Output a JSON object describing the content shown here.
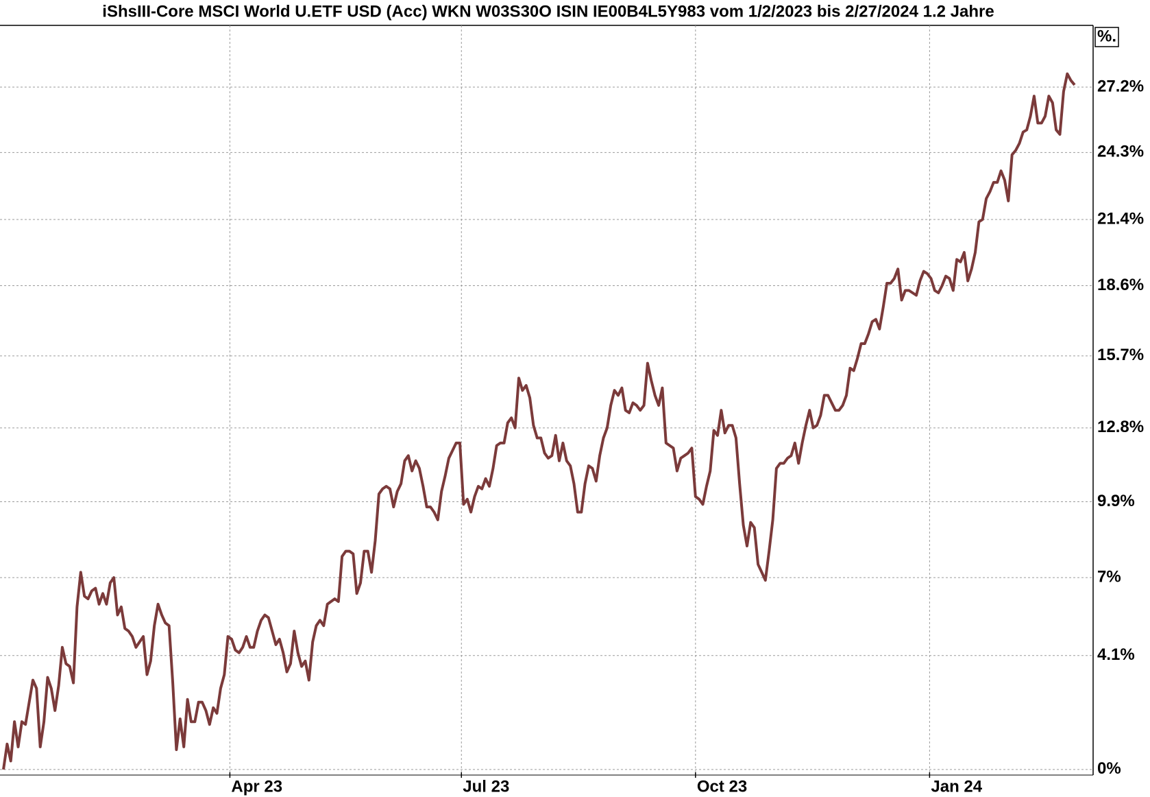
{
  "chart_data": {
    "type": "line",
    "title": "iShsIII-Core MSCI World U.ETF USD (Acc) WKN W03S30O ISIN IE00B4L5Y983 vom 1/2/2023 bis 2/27/2024 1.2 Jahre",
    "unit_label": "%.",
    "xlim": [
      "2023-01-02",
      "2024-02-27"
    ],
    "xticks": [
      {
        "value": "2023-04",
        "label": "Apr 23"
      },
      {
        "value": "2023-07",
        "label": "Jul 23"
      },
      {
        "value": "2023-10",
        "label": "Oct 23"
      },
      {
        "value": "2024-01",
        "label": "Jan 24"
      }
    ],
    "ylim": [
      -0.1,
      30
    ],
    "yticks": [
      {
        "value": 0,
        "label": "0%"
      },
      {
        "value": 4.1,
        "label": "4.1%"
      },
      {
        "value": 7,
        "label": "7%"
      },
      {
        "value": 9.9,
        "label": "9.9%"
      },
      {
        "value": 12.8,
        "label": "12.8%"
      },
      {
        "value": 15.7,
        "label": "15.7%"
      },
      {
        "value": 18.6,
        "label": "18.6%"
      },
      {
        "value": 21.4,
        "label": "21.4%"
      },
      {
        "value": 24.3,
        "label": "24.3%"
      },
      {
        "value": 27.2,
        "label": "27.2%"
      }
    ],
    "log_scale": true,
    "grid": true,
    "color": "#7b3a3a",
    "values": [
      0.0,
      0.9,
      0.3,
      1.7,
      0.8,
      1.7,
      1.6,
      2.4,
      3.2,
      2.9,
      0.8,
      1.7,
      3.3,
      2.9,
      2.1,
      3.0,
      4.4,
      3.8,
      3.7,
      3.1,
      5.9,
      7.2,
      6.3,
      6.2,
      6.5,
      6.6,
      6.0,
      6.4,
      6.0,
      6.8,
      7.0,
      5.6,
      5.9,
      5.1,
      5.0,
      4.8,
      4.4,
      4.6,
      4.8,
      3.4,
      3.9,
      5.2,
      6.0,
      5.6,
      5.3,
      5.2,
      3.1,
      0.7,
      1.8,
      0.8,
      2.5,
      1.7,
      1.7,
      2.4,
      2.4,
      2.1,
      1.6,
      2.2,
      2.0,
      2.9,
      3.4,
      4.8,
      4.7,
      4.3,
      4.2,
      4.4,
      4.8,
      4.4,
      4.4,
      5.0,
      5.4,
      5.6,
      5.5,
      5.0,
      4.5,
      4.7,
      4.2,
      3.5,
      3.8,
      5.0,
      4.2,
      3.7,
      3.9,
      3.2,
      4.6,
      5.2,
      5.4,
      5.2,
      6.0,
      6.1,
      6.2,
      6.1,
      7.8,
      8.0,
      8.0,
      7.9,
      6.4,
      6.8,
      8.0,
      8.0,
      7.2,
      8.4,
      10.2,
      10.4,
      10.5,
      10.4,
      9.7,
      10.3,
      10.6,
      11.5,
      11.7,
      11.1,
      11.5,
      11.2,
      10.5,
      9.7,
      9.7,
      9.5,
      9.2,
      10.3,
      10.9,
      11.6,
      11.9,
      12.2,
      12.2,
      9.8,
      10.0,
      9.5,
      10.1,
      10.5,
      10.4,
      10.8,
      10.5,
      11.2,
      12.1,
      12.2,
      12.2,
      13.0,
      13.2,
      12.8,
      14.8,
      14.3,
      14.5,
      14.0,
      12.9,
      12.4,
      12.4,
      11.8,
      11.6,
      11.7,
      12.5,
      11.5,
      12.2,
      11.5,
      11.3,
      10.6,
      9.5,
      9.5,
      10.6,
      11.3,
      11.2,
      10.7,
      11.7,
      12.4,
      12.8,
      13.7,
      14.3,
      14.1,
      14.4,
      13.5,
      13.4,
      13.8,
      13.7,
      13.5,
      13.7,
      15.4,
      14.7,
      14.1,
      13.7,
      14.4,
      12.2,
      12.1,
      12.0,
      11.1,
      11.6,
      11.7,
      11.8,
      12.0,
      10.1,
      10.0,
      9.8,
      10.5,
      11.1,
      12.7,
      12.5,
      13.5,
      12.6,
      12.9,
      12.9,
      12.4,
      10.6,
      9.0,
      8.2,
      9.1,
      8.9,
      7.5,
      7.2,
      6.9,
      8.0,
      9.2,
      11.2,
      11.4,
      11.4,
      11.6,
      11.7,
      12.2,
      11.4,
      12.2,
      12.9,
      13.5,
      12.8,
      12.9,
      13.3,
      14.1,
      14.1,
      13.8,
      13.5,
      13.5,
      13.7,
      14.1,
      15.2,
      15.1,
      15.6,
      16.2,
      16.2,
      16.6,
      17.1,
      17.2,
      16.8,
      17.7,
      18.7,
      18.7,
      18.9,
      19.3,
      18.0,
      18.4,
      18.4,
      18.3,
      18.2,
      18.8,
      19.2,
      19.1,
      18.9,
      18.4,
      18.3,
      18.6,
      19.0,
      18.9,
      18.4,
      19.7,
      19.6,
      20.0,
      18.8,
      19.3,
      20.0,
      21.3,
      21.4,
      22.3,
      22.6,
      23.0,
      23.0,
      23.5,
      23.1,
      22.2,
      24.2,
      24.4,
      24.7,
      25.2,
      25.3,
      25.9,
      26.8,
      25.6,
      25.6,
      25.9,
      26.8,
      26.5,
      25.3,
      25.1,
      27.0,
      27.8,
      27.5,
      27.3
    ]
  }
}
